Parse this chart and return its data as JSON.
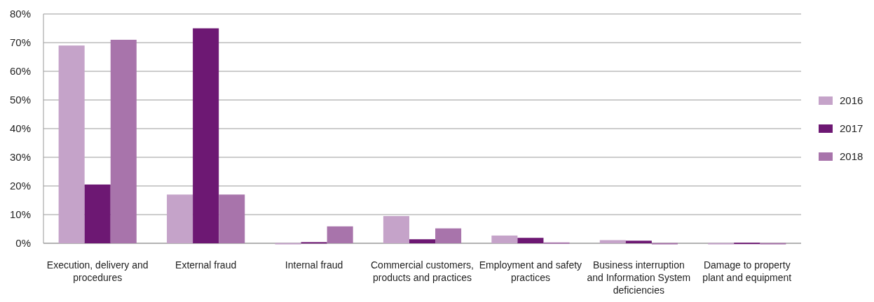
{
  "chart_data": {
    "type": "bar",
    "categories": [
      "Execution, delivery and procedures",
      "External fraud",
      "Internal fraud",
      "Commercial customers, products and practices",
      "Employment and safety practices",
      "Business interruption and Information System deficiencies",
      "Damage to property plant and equipment"
    ],
    "series": [
      {
        "name": "2016",
        "color": "#c5a3c9",
        "values": [
          69,
          17,
          0.1,
          9.5,
          2.7,
          1.1,
          0.1
        ]
      },
      {
        "name": "2017",
        "color": "#6d1873",
        "values": [
          20.5,
          75,
          0.4,
          1.4,
          1.9,
          0.9,
          0.2
        ]
      },
      {
        "name": "2018",
        "color": "#a874ab",
        "values": [
          71,
          17,
          5.9,
          5.2,
          0.3,
          0.1,
          0.1
        ]
      }
    ],
    "ylim": [
      0,
      80
    ],
    "yticks": [
      {
        "value": 0,
        "label": "0%"
      },
      {
        "value": 10,
        "label": "10%"
      },
      {
        "value": 20,
        "label": "20%"
      },
      {
        "value": 30,
        "label": "30%"
      },
      {
        "value": 40,
        "label": "40%"
      },
      {
        "value": 50,
        "label": "50%"
      },
      {
        "value": 60,
        "label": "60%"
      },
      {
        "value": 70,
        "label": "70%"
      },
      {
        "value": 80,
        "label": "80%"
      }
    ],
    "grid": "y",
    "legend": "right"
  }
}
